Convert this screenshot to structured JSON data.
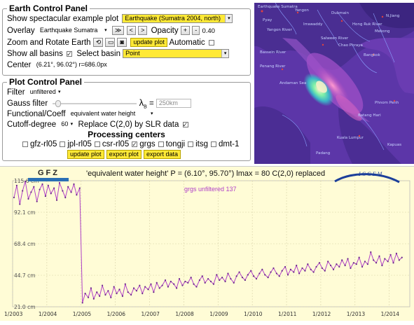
{
  "earth_panel": {
    "legend": "Earth Control Panel",
    "example_label": "Show spectacular example plot",
    "example_value": "Earthquake (Sumatra 2004, north)",
    "overlay_label": "Overlay",
    "overlay_value": "Earthquake Sumatra",
    "nav_buttons": [
      "≫",
      "<",
      ">"
    ],
    "opacity_label": "Opacity",
    "opacity_plus": "+",
    "opacity_minus": "-",
    "opacity_value": "0.40",
    "zoom_label": "Zoom and Rotate Earth",
    "update_plot_label": "update plot",
    "automatic_label": "Automatic",
    "show_basins_label": "Show all basins",
    "select_basin_label": "Select basin",
    "select_basin_value": "Point",
    "center_label": "Center",
    "center_value": "(6.21°, 96.02°) r=686.0px"
  },
  "plot_panel": {
    "legend": "Plot Control Panel",
    "filter_label": "Filter",
    "filter_value": "unfiltered",
    "gauss_label": "Gauss filter",
    "lambda_symbol": "λ",
    "lambda_sub": "B",
    "gauss_value": "250km",
    "func_label": "Functional/Coeff",
    "func_value": "equivalent water height",
    "cutoff_label": "Cutoff-degree",
    "cutoff_value": "60",
    "replace_label": "Replace C(2,0) by SLR data",
    "centers_title": "Processing centers",
    "centers": [
      {
        "name": "gfz-rl05",
        "checked": false
      },
      {
        "name": "jpl-rl05",
        "checked": false
      },
      {
        "name": "csr-rl05",
        "checked": false
      },
      {
        "name": "grgs",
        "checked": true
      },
      {
        "name": "tongji",
        "checked": false
      },
      {
        "name": "itsg",
        "checked": false
      },
      {
        "name": "dmt-1",
        "checked": false
      }
    ],
    "update_plot_label": "update plot",
    "export_plot_label": "export plot",
    "export_data_label": "export data"
  },
  "map": {
    "labels": [
      "Earthquake Sumatra",
      "Yangon",
      "Dubmain",
      "N.Jiang",
      "Bangkok",
      "Phnom Penh",
      "Pyay",
      "Yangon River",
      "Irrawaddy",
      "Salween River",
      "Hong Ruk River",
      "Mekong",
      "Chao Phraya",
      "Andaman Sea",
      "Bassein River",
      "Penang River",
      "Kuala Lumpur",
      "Batang Hari",
      "Kapuas",
      "Padang"
    ]
  },
  "logos": {
    "gfz": "GFZ",
    "icgem": "I C G E M"
  },
  "chart_data": {
    "type": "line",
    "title": "'equivalent water height' P = (6.10°, 95.70°) lmax = 80 C(2,0) replaced",
    "legend_entry": "grgs unfiltered 137",
    "series_color": "#b040c8",
    "xlabel": "",
    "ylabel": "",
    "x_ticks": [
      "1/2003",
      "1/2004",
      "1/2005",
      "1/2006",
      "1/2007",
      "1/2008",
      "1/2009",
      "1/2010",
      "1/2011",
      "1/2012",
      "1/2013",
      "1/2014"
    ],
    "y_ticks": [
      "115.6 cm",
      "92.1 cm",
      "68.4 cm",
      "44.7 cm",
      "21.0 cm"
    ],
    "ylim": [
      21.0,
      115.6
    ],
    "xlim": [
      2003.0,
      2014.6
    ],
    "grid": true,
    "series": [
      {
        "name": "grgs unfiltered 137",
        "x": [
          2003.04,
          2003.12,
          2003.21,
          2003.29,
          2003.37,
          2003.46,
          2003.54,
          2003.62,
          2003.71,
          2003.79,
          2003.87,
          2003.96,
          2004.04,
          2004.12,
          2004.21,
          2004.29,
          2004.37,
          2004.46,
          2004.54,
          2004.62,
          2004.71,
          2004.79,
          2004.87,
          2004.96,
          2005.04,
          2005.12,
          2005.21,
          2005.29,
          2005.37,
          2005.46,
          2005.54,
          2005.62,
          2005.71,
          2005.79,
          2005.87,
          2005.96,
          2006.04,
          2006.12,
          2006.21,
          2006.29,
          2006.37,
          2006.46,
          2006.54,
          2006.62,
          2006.71,
          2006.79,
          2006.87,
          2006.96,
          2007.04,
          2007.12,
          2007.21,
          2007.29,
          2007.37,
          2007.46,
          2007.54,
          2007.62,
          2007.71,
          2007.79,
          2007.87,
          2007.96,
          2008.04,
          2008.12,
          2008.21,
          2008.29,
          2008.37,
          2008.46,
          2008.54,
          2008.62,
          2008.71,
          2008.79,
          2008.87,
          2008.96,
          2009.04,
          2009.12,
          2009.21,
          2009.29,
          2009.37,
          2009.46,
          2009.54,
          2009.62,
          2009.71,
          2009.79,
          2009.87,
          2009.96,
          2010.04,
          2010.12,
          2010.21,
          2010.29,
          2010.37,
          2010.46,
          2010.54,
          2010.62,
          2010.71,
          2010.79,
          2010.87,
          2010.96,
          2011.04,
          2011.12,
          2011.21,
          2011.29,
          2011.37,
          2011.46,
          2011.54,
          2011.62,
          2011.71,
          2011.79,
          2011.87,
          2011.96,
          2012.04,
          2012.12,
          2012.21,
          2012.29,
          2012.37,
          2012.46,
          2012.54,
          2012.62,
          2012.71,
          2012.79,
          2012.87,
          2012.96,
          2013.04,
          2013.12,
          2013.21,
          2013.29,
          2013.37,
          2013.46,
          2013.54,
          2013.62,
          2013.71,
          2013.79,
          2013.87,
          2013.96,
          2014.04,
          2014.12,
          2014.21,
          2014.29,
          2014.37
        ],
        "values": [
          103,
          112,
          98,
          108,
          115,
          102,
          107,
          111,
          100,
          109,
          113,
          104,
          112,
          106,
          110,
          101,
          114,
          108,
          103,
          111,
          107,
          113,
          105,
          110,
          24,
          31,
          28,
          35,
          27,
          32,
          29,
          37,
          30,
          33,
          28,
          36,
          31,
          34,
          29,
          38,
          32,
          30,
          35,
          33,
          37,
          31,
          36,
          34,
          38,
          32,
          39,
          35,
          37,
          41,
          36,
          40,
          38,
          35,
          42,
          37,
          40,
          39,
          43,
          38,
          36,
          41,
          44,
          39,
          42,
          40,
          38,
          45,
          41,
          43,
          40,
          46,
          42,
          39,
          44,
          47,
          43,
          41,
          45,
          48,
          44,
          42,
          46,
          49,
          45,
          43,
          47,
          50,
          46,
          44,
          48,
          51,
          45,
          49,
          47,
          52,
          46,
          50,
          48,
          53,
          49,
          47,
          51,
          54,
          50,
          48,
          55,
          52,
          49,
          53,
          51,
          56,
          52,
          57,
          50,
          54,
          53,
          58,
          51,
          55,
          53,
          62,
          56,
          54,
          59,
          52,
          57,
          55,
          60,
          54,
          61,
          56,
          58
        ]
      }
    ]
  }
}
